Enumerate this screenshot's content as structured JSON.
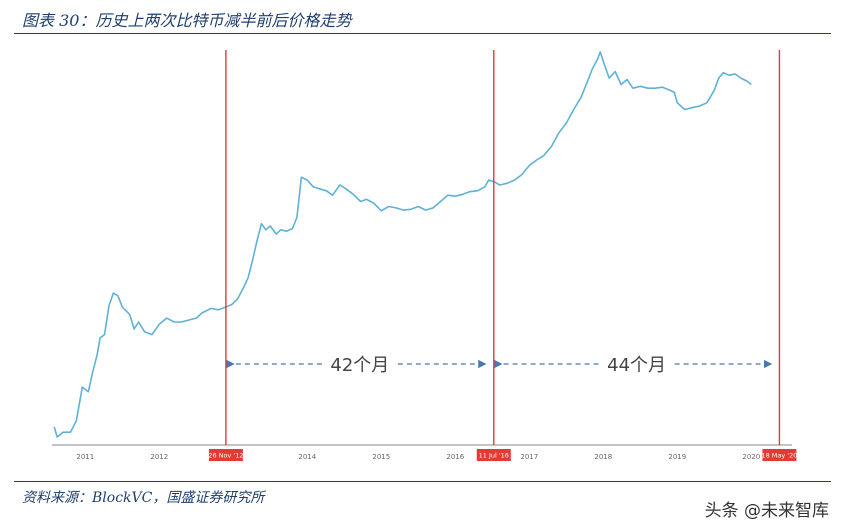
{
  "header": {
    "title": "图表 30：历史上两次比特币减半前后价格走势"
  },
  "footer": {
    "source": "资料来源：BlockVC，国盛证券研究所",
    "watermark": "头条 @未来智库"
  },
  "colors": {
    "line": "#5fb2d6",
    "halving": "#e53935",
    "annotation": "#4a78b5",
    "frame": "#1f3f6e"
  },
  "chart_data": {
    "type": "line",
    "title": "",
    "xlabel": "",
    "ylabel": "",
    "grid": false,
    "x_range": [
      2010.55,
      2020.55
    ],
    "y_scale": "log",
    "x_ticks": [
      {
        "x": 2011.0,
        "label": "2011"
      },
      {
        "x": 2012.0,
        "label": "2012"
      },
      {
        "x": 2014.0,
        "label": "2014"
      },
      {
        "x": 2015.0,
        "label": "2015"
      },
      {
        "x": 2016.0,
        "label": "2016"
      },
      {
        "x": 2017.0,
        "label": "2017"
      },
      {
        "x": 2018.0,
        "label": "2018"
      },
      {
        "x": 2019.0,
        "label": "2019"
      },
      {
        "x": 2020.0,
        "label": "2020"
      }
    ],
    "halvings": [
      {
        "x": 2012.9,
        "label": "26 Nov '12"
      },
      {
        "x": 2016.52,
        "label": "11 Jul '16"
      },
      {
        "x": 2020.38,
        "label": "18 May '20"
      }
    ],
    "intervals": [
      {
        "from": 2012.9,
        "to": 2016.52,
        "label": "42个月"
      },
      {
        "from": 2016.52,
        "to": 2020.38,
        "label": "44个月"
      }
    ],
    "series": [
      {
        "name": "",
        "points": [
          [
            2010.58,
            0.07
          ],
          [
            2010.62,
            0.052
          ],
          [
            2010.7,
            0.06
          ],
          [
            2010.8,
            0.06
          ],
          [
            2010.88,
            0.085
          ],
          [
            2010.96,
            0.23
          ],
          [
            2011.04,
            0.2
          ],
          [
            2011.1,
            0.36
          ],
          [
            2011.16,
            0.6
          ],
          [
            2011.2,
            1.0
          ],
          [
            2011.26,
            1.1
          ],
          [
            2011.32,
            2.6
          ],
          [
            2011.38,
            3.8
          ],
          [
            2011.44,
            3.5
          ],
          [
            2011.5,
            2.5
          ],
          [
            2011.6,
            2.0
          ],
          [
            2011.66,
            1.3
          ],
          [
            2011.72,
            1.6
          ],
          [
            2011.8,
            1.2
          ],
          [
            2011.9,
            1.1
          ],
          [
            2012.0,
            1.5
          ],
          [
            2012.1,
            1.8
          ],
          [
            2012.2,
            1.6
          ],
          [
            2012.3,
            1.6
          ],
          [
            2012.4,
            1.7
          ],
          [
            2012.5,
            1.8
          ],
          [
            2012.58,
            2.1
          ],
          [
            2012.7,
            2.4
          ],
          [
            2012.8,
            2.3
          ],
          [
            2012.9,
            2.5
          ],
          [
            2012.98,
            2.7
          ],
          [
            2013.06,
            3.2
          ],
          [
            2013.14,
            4.5
          ],
          [
            2013.2,
            6.0
          ],
          [
            2013.26,
            10.0
          ],
          [
            2013.32,
            18.0
          ],
          [
            2013.38,
            30.0
          ],
          [
            2013.44,
            25.0
          ],
          [
            2013.5,
            28.0
          ],
          [
            2013.58,
            22.0
          ],
          [
            2013.64,
            25.0
          ],
          [
            2013.72,
            24.0
          ],
          [
            2013.8,
            26.0
          ],
          [
            2013.86,
            36.0
          ],
          [
            2013.92,
            120.0
          ],
          [
            2014.0,
            110.0
          ],
          [
            2014.08,
            90.0
          ],
          [
            2014.16,
            85.0
          ],
          [
            2014.26,
            80.0
          ],
          [
            2014.34,
            70.0
          ],
          [
            2014.44,
            95.0
          ],
          [
            2014.52,
            85.0
          ],
          [
            2014.62,
            72.0
          ],
          [
            2014.72,
            58.0
          ],
          [
            2014.8,
            62.0
          ],
          [
            2014.9,
            55.0
          ],
          [
            2015.0,
            44.0
          ],
          [
            2015.1,
            50.0
          ],
          [
            2015.2,
            48.0
          ],
          [
            2015.3,
            45.0
          ],
          [
            2015.4,
            46.0
          ],
          [
            2015.5,
            50.0
          ],
          [
            2015.6,
            45.0
          ],
          [
            2015.7,
            48.0
          ],
          [
            2015.8,
            58.0
          ],
          [
            2015.9,
            70.0
          ],
          [
            2016.0,
            68.0
          ],
          [
            2016.1,
            72.0
          ],
          [
            2016.2,
            78.0
          ],
          [
            2016.3,
            80.0
          ],
          [
            2016.4,
            90.0
          ],
          [
            2016.45,
            110.0
          ],
          [
            2016.52,
            105.0
          ],
          [
            2016.6,
            95.0
          ],
          [
            2016.7,
            100.0
          ],
          [
            2016.8,
            110.0
          ],
          [
            2016.9,
            130.0
          ],
          [
            2017.0,
            170.0
          ],
          [
            2017.1,
            200.0
          ],
          [
            2017.2,
            230.0
          ],
          [
            2017.3,
            300.0
          ],
          [
            2017.4,
            450.0
          ],
          [
            2017.5,
            600.0
          ],
          [
            2017.6,
            900.0
          ],
          [
            2017.7,
            1300
          ],
          [
            2017.78,
            2000
          ],
          [
            2017.85,
            3000
          ],
          [
            2017.92,
            4000
          ],
          [
            2017.96,
            5000
          ],
          [
            2018.02,
            3300
          ],
          [
            2018.08,
            2300
          ],
          [
            2018.16,
            2800
          ],
          [
            2018.24,
            1900
          ],
          [
            2018.32,
            2200
          ],
          [
            2018.4,
            1700
          ],
          [
            2018.5,
            1800
          ],
          [
            2018.6,
            1700
          ],
          [
            2018.7,
            1700
          ],
          [
            2018.8,
            1750
          ],
          [
            2018.9,
            1600
          ],
          [
            2018.96,
            1500
          ],
          [
            2019.0,
            1100
          ],
          [
            2019.1,
            900.0
          ],
          [
            2019.2,
            950.0
          ],
          [
            2019.3,
            1000
          ],
          [
            2019.4,
            1100
          ],
          [
            2019.5,
            1600
          ],
          [
            2019.56,
            2300
          ],
          [
            2019.62,
            2700
          ],
          [
            2019.7,
            2500
          ],
          [
            2019.78,
            2600
          ],
          [
            2019.86,
            2300
          ],
          [
            2019.94,
            2100
          ],
          [
            2020.0,
            1900
          ]
        ]
      }
    ]
  }
}
